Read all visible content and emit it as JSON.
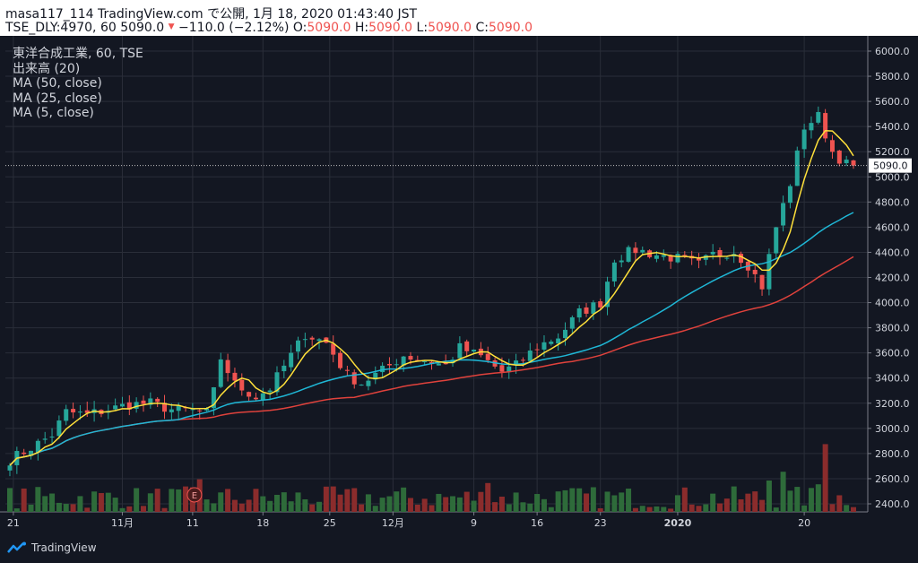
{
  "header": {
    "publish_line": "masa117_114 TradingView.com で公開, 1月 18, 2020 01:43:40 JST",
    "symbol_info": "TSE_DLY:4970, 60 5090.0",
    "change": "−110.0 (−2.12%)",
    "o_label": "O:",
    "o_value": "5090.0",
    "h_label": "H:",
    "h_value": "5090.0",
    "l_label": "L:",
    "l_value": "5090.0",
    "c_label": "C:",
    "c_value": "5090.0"
  },
  "overlay": {
    "title": "東洋合成工業, 60, TSE",
    "indicators": [
      "出来高 (20)",
      "MA (50, close)",
      "MA (25, close)",
      "MA (5, close)"
    ]
  },
  "footer": {
    "brand": "TradingView"
  },
  "colors": {
    "up": "#26a69a",
    "down": "#ef5350",
    "vol_up": "#2e6b3a",
    "vol_down": "#8b2c2c",
    "ma50": "#e0423c",
    "ma25": "#1fb7d6",
    "ma5": "#ffe03a",
    "grid": "#2a2e39",
    "axis_text": "#d1d4dc",
    "background": "#131722"
  },
  "chart_data": {
    "type": "candlestick",
    "y_axis": {
      "min": 2400,
      "max": 6000,
      "ticks": [
        2400,
        2600,
        2800,
        3000,
        3200,
        3400,
        3600,
        3800,
        4000,
        4200,
        4400,
        4600,
        4800,
        5000,
        5200,
        5400,
        5600,
        5800,
        6000
      ]
    },
    "last_price_label": "5090.0",
    "last_price": 5090,
    "x_tick_labels": [
      "21",
      "11月",
      "11",
      "18",
      "25",
      "12月",
      "9",
      "16",
      "23",
      "2020",
      "20"
    ],
    "event_marker": "E",
    "price_path": [
      [
        0,
        2750
      ],
      [
        4,
        2880
      ],
      [
        6,
        2950
      ],
      [
        8,
        3130
      ],
      [
        11,
        3110
      ],
      [
        14,
        3150
      ],
      [
        17,
        3190
      ],
      [
        20,
        3200
      ],
      [
        23,
        3150
      ],
      [
        26,
        3140
      ],
      [
        28,
        3120
      ],
      [
        29,
        3290
      ],
      [
        30,
        3560
      ],
      [
        32,
        3350
      ],
      [
        35,
        3250
      ],
      [
        37,
        3320
      ],
      [
        40,
        3580
      ],
      [
        42,
        3750
      ],
      [
        45,
        3680
      ],
      [
        48,
        3420
      ],
      [
        50,
        3360
      ],
      [
        53,
        3460
      ],
      [
        56,
        3580
      ],
      [
        59,
        3540
      ],
      [
        62,
        3500
      ],
      [
        64,
        3640
      ],
      [
        67,
        3570
      ],
      [
        70,
        3450
      ],
      [
        72,
        3500
      ],
      [
        75,
        3650
      ],
      [
        78,
        3730
      ],
      [
        81,
        3920
      ],
      [
        84,
        4000
      ],
      [
        86,
        4350
      ],
      [
        89,
        4420
      ],
      [
        92,
        4380
      ],
      [
        95,
        4350
      ],
      [
        98,
        4300
      ],
      [
        100,
        4380
      ],
      [
        103,
        4410
      ],
      [
        105,
        4300
      ],
      [
        107,
        4130
      ],
      [
        109,
        4600
      ],
      [
        111,
        4950
      ],
      [
        113,
        5400
      ],
      [
        115,
        5480
      ],
      [
        117,
        5200
      ],
      [
        119,
        5100
      ],
      [
        120,
        5090
      ]
    ],
    "volume_spikes": {
      "110": 1600,
      "116": 2700,
      "27": 1300,
      "68": 1150,
      "115": 1100,
      "108": 1250
    }
  }
}
